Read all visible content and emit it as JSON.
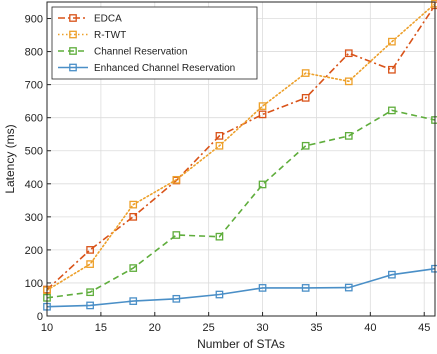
{
  "chart_data": {
    "type": "line",
    "title": "",
    "xlabel": "Number of STAs",
    "ylabel": "Latency (ms)",
    "xlim": [
      10,
      46
    ],
    "ylim": [
      0,
      950
    ],
    "xticks": [
      10,
      15,
      20,
      25,
      30,
      35,
      40,
      45
    ],
    "yticks": [
      0,
      100,
      200,
      300,
      400,
      500,
      600,
      700,
      800,
      900
    ],
    "grid": true,
    "legend": "top-left",
    "x": [
      10,
      14,
      18,
      22,
      26,
      30,
      34,
      38,
      42,
      46
    ],
    "series": [
      {
        "name": "EDCA",
        "color": "#d95319",
        "style": "dash-dot",
        "marker": "square",
        "values": [
          80,
          200,
          300,
          410,
          545,
          610,
          660,
          795,
          745,
          940
        ]
      },
      {
        "name": "R-TWT",
        "color": "#eda02a",
        "style": "dotted",
        "marker": "square",
        "values": [
          78,
          157,
          337,
          412,
          515,
          635,
          735,
          710,
          830,
          945
        ]
      },
      {
        "name": "Channel Reservation",
        "color": "#5fad3c",
        "style": "dashed",
        "marker": "square",
        "values": [
          55,
          72,
          145,
          245,
          240,
          398,
          515,
          545,
          622,
          593
        ]
      },
      {
        "name": "Enhanced Channel Reservation",
        "color": "#4a8fc7",
        "style": "solid",
        "marker": "square",
        "values": [
          28,
          32,
          45,
          52,
          65,
          85,
          85,
          86,
          125,
          143
        ]
      }
    ]
  }
}
